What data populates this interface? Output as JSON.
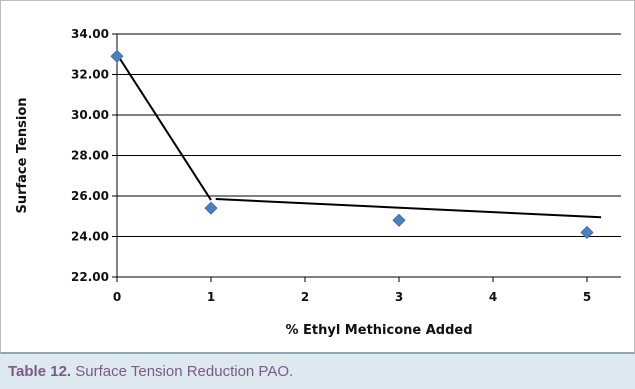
{
  "caption": {
    "label": "Table 12.",
    "text": " Surface Tension Reduction PAO."
  },
  "colors": {
    "marker": "#4a7fc0",
    "trend_line": "#000000",
    "grid": "#000000",
    "caption_label": "#7a5a86",
    "caption_band": "#dde9ee"
  },
  "chart_data": {
    "type": "scatter",
    "xlabel": "% Ethyl Methicone Added",
    "ylabel": "Surface Tension",
    "xlim": [
      0,
      5
    ],
    "ylim": [
      22.0,
      34.0
    ],
    "x_ticks": [
      "0",
      "1",
      "2",
      "3",
      "4",
      "5"
    ],
    "y_ticks": [
      "22.00",
      "24.00",
      "26.00",
      "28.00",
      "30.00",
      "32.00",
      "34.00"
    ],
    "grid": true,
    "legend": "none",
    "marker": "diamond",
    "series": [
      {
        "x": [
          0,
          1,
          3,
          5
        ],
        "y": [
          32.9,
          25.4,
          24.8,
          24.2
        ]
      }
    ],
    "trend_segments": [
      {
        "x": [
          0,
          1
        ],
        "y": [
          33.0,
          25.8
        ]
      },
      {
        "x": [
          1.05,
          5.15
        ],
        "y": [
          25.85,
          24.95
        ]
      }
    ]
  }
}
